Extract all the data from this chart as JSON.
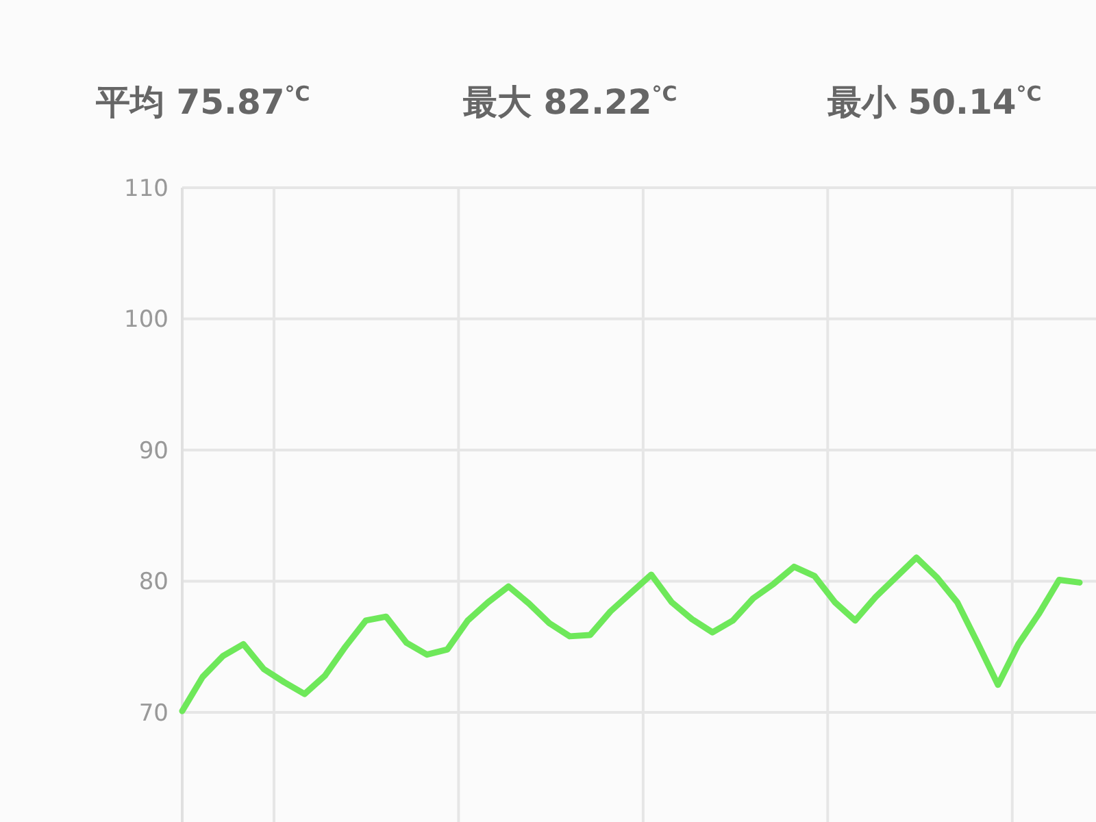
{
  "chart_data": {
    "type": "line",
    "annotations": [
      "平均 75.87$^{°C}$",
      "最大 82.22$^{°C}$",
      "最小 50.14$^{°C}$"
    ],
    "categories": [
      null,
      null,
      null,
      null,
      null,
      null,
      null,
      null,
      null,
      null,
      null,
      null,
      null,
      null,
      null,
      null,
      null,
      null,
      null,
      null,
      null,
      null,
      null,
      null,
      null,
      null,
      null,
      null,
      null,
      null,
      null,
      null,
      null,
      null,
      null,
      null,
      null,
      null,
      null,
      null,
      null,
      null,
      null,
      null,
      null
    ],
    "ylim": [
      61.6,
      110
    ],
    "yticks": [
      70,
      80,
      90,
      100,
      110
    ],
    "grid": true,
    "marker": "none",
    "line_style": "solid",
    "series": [
      {
        "color": "#6ee85a",
        "values": [
          70.1,
          72.7,
          74.3,
          75.2,
          73.3,
          72.3,
          71.4,
          72.8,
          75.0,
          77.0,
          77.3,
          75.3,
          74.4,
          74.8,
          77.0,
          78.4,
          79.6,
          78.3,
          76.8,
          75.8,
          75.9,
          77.7,
          79.1,
          80.5,
          78.4,
          77.1,
          76.1,
          77.0,
          78.7,
          79.8,
          81.1,
          80.4,
          78.4,
          77.0,
          78.8,
          80.3,
          81.8,
          80.3,
          78.4,
          75.3,
          72.1,
          75.2,
          77.5,
          80.1,
          79.9
        ]
      }
    ]
  }
}
